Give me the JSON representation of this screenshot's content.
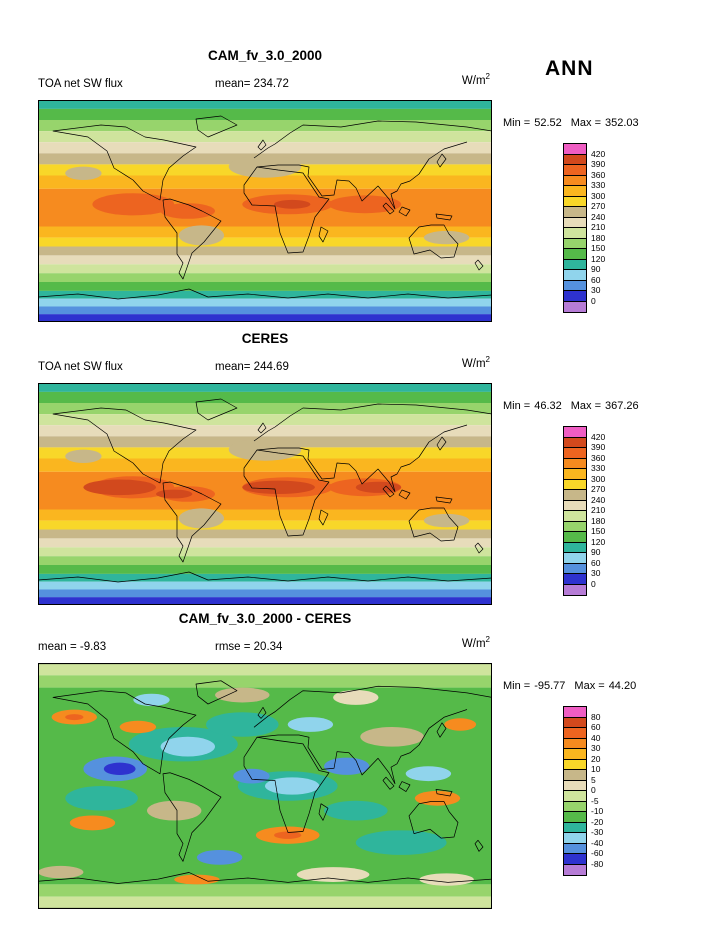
{
  "figure": {
    "season": "ANN"
  },
  "panels": [
    {
      "title": "CAM_fv_3.0_2000",
      "left_label": "TOA net SW flux",
      "mid_label": "mean= 234.72",
      "units_base": "W/m",
      "units_sup": "2",
      "min_label": "Min =",
      "min_value": "52.52",
      "max_label": "Max =",
      "max_value": "352.03",
      "colorbar_labels": [
        "420",
        "390",
        "360",
        "330",
        "300",
        "270",
        "240",
        "210",
        "180",
        "150",
        "120",
        "90",
        "60",
        "30",
        "0"
      ],
      "colorbar_colors": [
        "#ef5dc3",
        "#d2491d",
        "#ed6420",
        "#f68b1f",
        "#fab61f",
        "#f8d729",
        "#c7b789",
        "#e7dcba",
        "#cfe49d",
        "#97d46c",
        "#55ba49",
        "#2fb59c",
        "#90d4ec",
        "#5591de",
        "#2e32cf",
        "#b67cd6"
      ]
    },
    {
      "title": "CERES",
      "left_label": "TOA net SW flux",
      "mid_label": "mean= 244.69",
      "units_base": "W/m",
      "units_sup": "2",
      "min_label": "Min =",
      "min_value": "46.32",
      "max_label": "Max =",
      "max_value": "367.26",
      "colorbar_labels": [
        "420",
        "390",
        "360",
        "330",
        "300",
        "270",
        "240",
        "210",
        "180",
        "150",
        "120",
        "90",
        "60",
        "30",
        "0"
      ],
      "colorbar_colors": [
        "#ef5dc3",
        "#d2491d",
        "#ed6420",
        "#f68b1f",
        "#fab61f",
        "#f8d729",
        "#c7b789",
        "#e7dcba",
        "#cfe49d",
        "#97d46c",
        "#55ba49",
        "#2fb59c",
        "#90d4ec",
        "#5591de",
        "#2e32cf",
        "#b67cd6"
      ]
    },
    {
      "title": "CAM_fv_3.0_2000 - CERES",
      "left_label": "mean =  -9.83",
      "mid_label": "rmse =  20.34",
      "units_base": "W/m",
      "units_sup": "2",
      "min_label": "Min =",
      "min_value": "-95.77",
      "max_label": "Max =",
      "max_value": "44.20",
      "colorbar_labels": [
        "80",
        "60",
        "40",
        "30",
        "20",
        "10",
        "5",
        "0",
        "-5",
        "-10",
        "-20",
        "-30",
        "-40",
        "-60",
        "-80"
      ],
      "colorbar_colors": [
        "#ef5dc3",
        "#d2491d",
        "#ed6420",
        "#f68b1f",
        "#fab61f",
        "#f8d729",
        "#c7b789",
        "#e7dcba",
        "#cfe49d",
        "#97d46c",
        "#55ba49",
        "#2fb59c",
        "#90d4ec",
        "#5591de",
        "#2e32cf",
        "#b67cd6"
      ]
    }
  ],
  "chart_data": [
    {
      "type": "heatmap",
      "subtype": "filled-contour global map",
      "panel": "top",
      "title": "CAM_fv_3.0_2000",
      "variable": "TOA net SW flux",
      "units": "W/m2",
      "season": "ANN",
      "mean": 234.72,
      "min": 52.52,
      "max": 352.03,
      "contour_levels": [
        0,
        30,
        60,
        90,
        120,
        150,
        180,
        210,
        240,
        270,
        300,
        330,
        360,
        390,
        420
      ],
      "palette_top_to_bottom": [
        "#ef5dc3",
        "#d2491d",
        "#ed6420",
        "#f68b1f",
        "#fab61f",
        "#f8d729",
        "#c7b789",
        "#e7dcba",
        "#cfe49d",
        "#97d46c",
        "#55ba49",
        "#2fb59c",
        "#90d4ec",
        "#5591de",
        "#2e32cf",
        "#b67cd6"
      ]
    },
    {
      "type": "heatmap",
      "subtype": "filled-contour global map",
      "panel": "middle",
      "title": "CERES",
      "variable": "TOA net SW flux",
      "units": "W/m2",
      "season": "ANN",
      "mean": 244.69,
      "min": 46.32,
      "max": 367.26,
      "contour_levels": [
        0,
        30,
        60,
        90,
        120,
        150,
        180,
        210,
        240,
        270,
        300,
        330,
        360,
        390,
        420
      ],
      "palette_top_to_bottom": [
        "#ef5dc3",
        "#d2491d",
        "#ed6420",
        "#f68b1f",
        "#fab61f",
        "#f8d729",
        "#c7b789",
        "#e7dcba",
        "#cfe49d",
        "#97d46c",
        "#55ba49",
        "#2fb59c",
        "#90d4ec",
        "#5591de",
        "#2e32cf",
        "#b67cd6"
      ]
    },
    {
      "type": "heatmap",
      "subtype": "filled-contour global map (difference)",
      "panel": "bottom",
      "title": "CAM_fv_3.0_2000 - CERES",
      "units": "W/m2",
      "season": "ANN",
      "mean": -9.83,
      "rmse": 20.34,
      "min": -95.77,
      "max": 44.2,
      "contour_levels": [
        -80,
        -60,
        -40,
        -30,
        -20,
        -10,
        -5,
        0,
        5,
        10,
        20,
        30,
        40,
        60,
        80
      ],
      "palette_top_to_bottom": [
        "#ef5dc3",
        "#d2491d",
        "#ed6420",
        "#f68b1f",
        "#fab61f",
        "#f8d729",
        "#c7b789",
        "#e7dcba",
        "#cfe49d",
        "#97d46c",
        "#55ba49",
        "#2fb59c",
        "#90d4ec",
        "#5591de",
        "#2e32cf",
        "#b67cd6"
      ]
    }
  ]
}
